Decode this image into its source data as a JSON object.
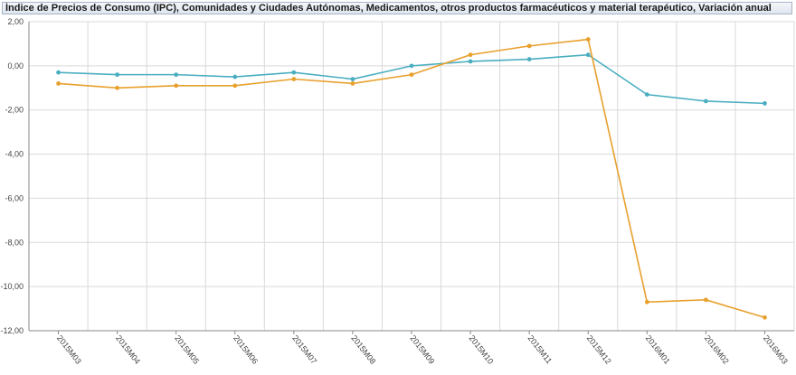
{
  "title": "Índice de Precios de Consumo (IPC), Comunidades y Ciudades Autónomas, Medicamentos, otros productos farmacéuticos y material terapéutico, Variación anual",
  "chart_data": {
    "type": "line",
    "title": "Índice de Precios de Consumo (IPC), Comunidades y Ciudades Autónomas, Medicamentos, otros productos farmacéuticos y material terapéutico, Variación anual",
    "categories": [
      "2015M03",
      "2015M04",
      "2015M05",
      "2015M06",
      "2015M07",
      "2015M08",
      "2015M09",
      "2015M10",
      "2015M11",
      "2015M12",
      "2016M01",
      "2016M02",
      "2016M03"
    ],
    "yticks": [
      "2,00",
      "0,00",
      "-2,00",
      "-4,00",
      "-6,00",
      "-8,00",
      "-10,00",
      "-12,00"
    ],
    "ylim": [
      -12,
      2
    ],
    "grid": true,
    "series": [
      {
        "color": "#4aaec0",
        "values": [
          -0.3,
          -0.4,
          -0.4,
          -0.5,
          -0.3,
          -0.6,
          0.0,
          0.2,
          0.3,
          0.5,
          -1.3,
          -1.6,
          -1.7
        ]
      },
      {
        "color": "#e8a02d",
        "values": [
          -0.8,
          -1.0,
          -0.9,
          -0.9,
          -0.6,
          -0.8,
          -0.4,
          0.5,
          0.9,
          1.2,
          -10.7,
          -10.6,
          -11.4
        ]
      }
    ]
  }
}
